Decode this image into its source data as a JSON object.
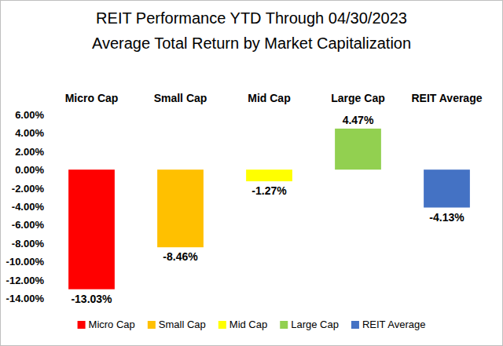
{
  "chart_data": {
    "type": "bar",
    "title": "REIT Performance YTD Through 04/30/2023",
    "subtitle": "Average Total Return by Market Capitalization",
    "categories": [
      "Micro Cap",
      "Small Cap",
      "Mid Cap",
      "Large Cap",
      "REIT Average"
    ],
    "values": [
      -13.03,
      -8.46,
      -1.27,
      4.47,
      -4.13
    ],
    "value_labels": [
      "-13.03%",
      "-8.46%",
      "-1.27%",
      "4.47%",
      "-4.13%"
    ],
    "colors": [
      "#ff0000",
      "#ffc000",
      "#ffff00",
      "#92d050",
      "#4472c4"
    ],
    "ylim": [
      -14,
      6
    ],
    "yticks": [
      {
        "value": 6,
        "label": "6.00%"
      },
      {
        "value": 4,
        "label": "4.00%"
      },
      {
        "value": 2,
        "label": "2.00%"
      },
      {
        "value": 0,
        "label": "0.00%"
      },
      {
        "value": -2,
        "label": "-2.00%"
      },
      {
        "value": -4,
        "label": "-4.00%"
      },
      {
        "value": -6,
        "label": "-6.00%"
      },
      {
        "value": -8,
        "label": "-8.00%"
      },
      {
        "value": -10,
        "label": "-10.00%"
      },
      {
        "value": -12,
        "label": "-12.00%"
      },
      {
        "value": -14,
        "label": "-14.00%"
      }
    ],
    "grid": false,
    "legend": "bottom",
    "data_labels": true
  }
}
